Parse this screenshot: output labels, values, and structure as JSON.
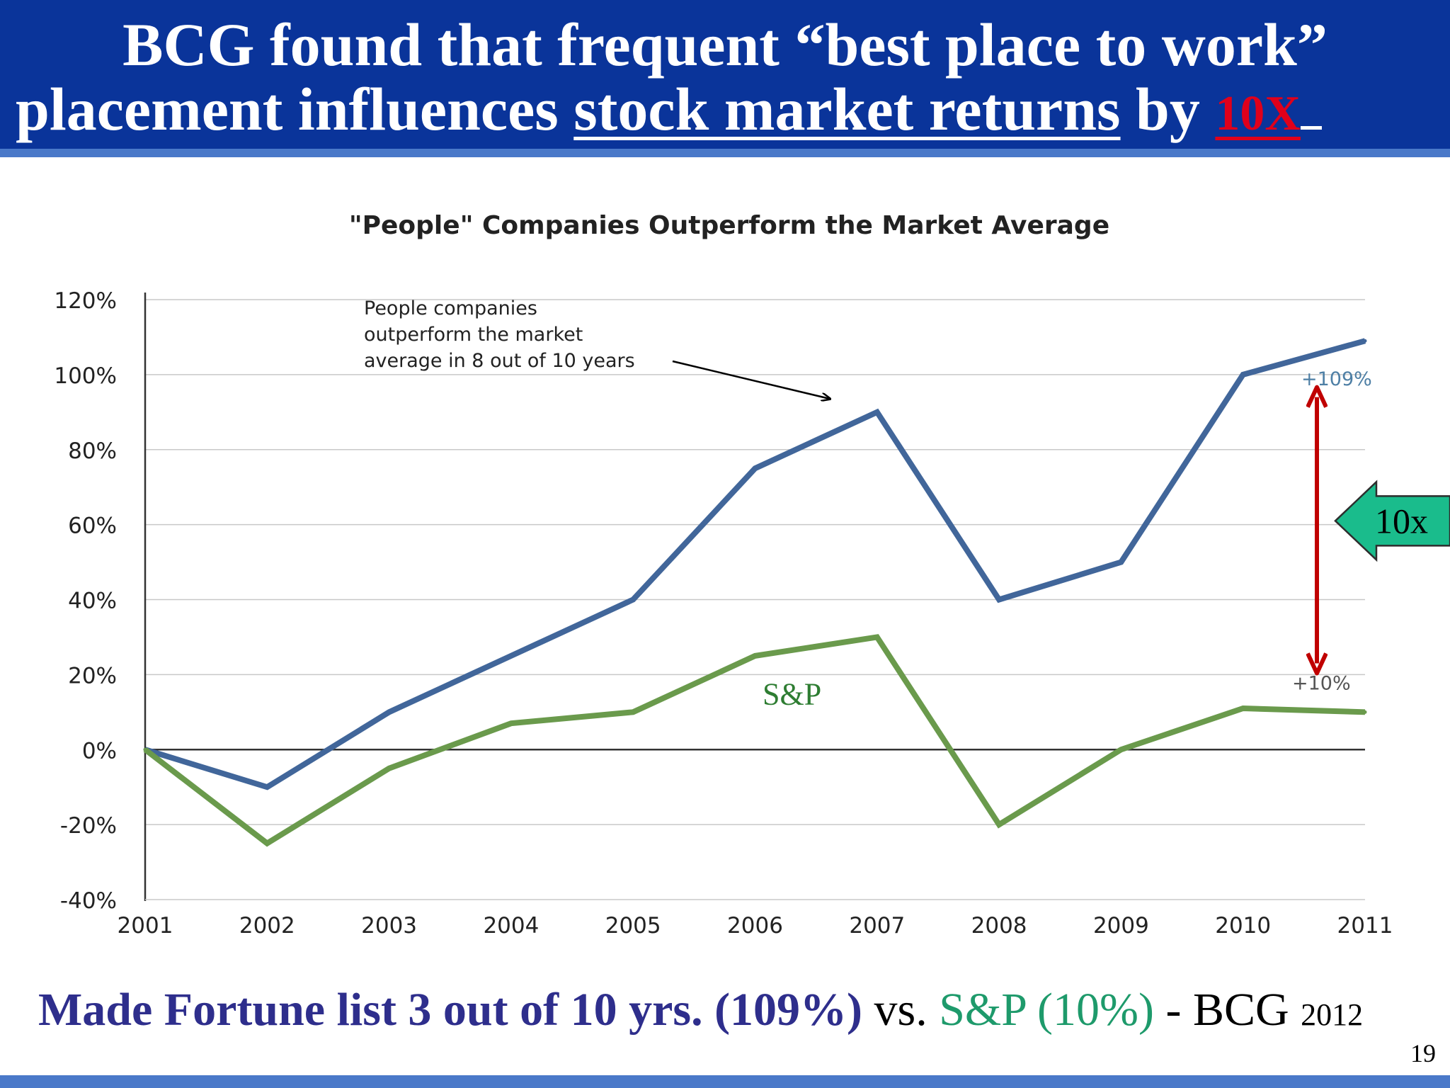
{
  "header": {
    "line1": "BCG found that frequent “best place to work”",
    "line2_prefix": "placement influences ",
    "line2_underlined": "stock market returns",
    "line2_by": " by ",
    "line2_highlight": "10X",
    "bg_color": "#0a349a",
    "highlight_color": "#e0001b"
  },
  "chart_data": {
    "type": "line",
    "title": "\"People\" Companies Outperform the Market Average",
    "x": [
      2001,
      2002,
      2003,
      2004,
      2005,
      2006,
      2007,
      2008,
      2009,
      2010,
      2011
    ],
    "ylim": [
      -40,
      120
    ],
    "y_ticks": [
      "120%",
      "100%",
      "80%",
      "60%",
      "40%",
      "20%",
      "0%",
      "-20%",
      "-40%"
    ],
    "x_ticks": [
      "2001",
      "2002",
      "2003",
      "2004",
      "2005",
      "2006",
      "2007",
      "2008",
      "2009",
      "2010",
      "2011"
    ],
    "grid": true,
    "series": [
      {
        "values": [
          0,
          -10,
          10,
          25,
          40,
          75,
          90,
          40,
          50,
          100,
          109
        ],
        "color": "#41669a",
        "end_label": "+109%"
      },
      {
        "name": "S&P",
        "values": [
          0,
          -25,
          -5,
          7,
          10,
          25,
          30,
          -20,
          0,
          11,
          10
        ],
        "color": "#6a9a4c",
        "end_label": "+10%"
      }
    ],
    "annotation": {
      "lines": [
        "People companies",
        "outperform the market",
        "average in 8 out of 10 years"
      ]
    },
    "callout": {
      "text": "10x",
      "color": "#1abc8c"
    },
    "gap_arrow_color": "#c00000"
  },
  "footer": {
    "main": "Made Fortune list 3 out of 10 yrs. (109%)",
    "vs": " vs. ",
    "sp": "S&P (10%)",
    "src": " -  BCG ",
    "year": "2012"
  },
  "slide_number": "19"
}
